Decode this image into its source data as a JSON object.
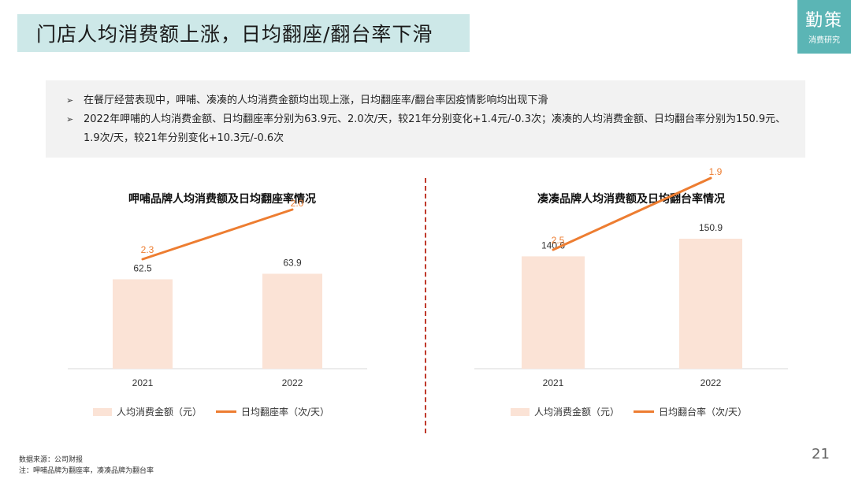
{
  "header": {
    "title": "门店人均消费额上涨，日均翻座/翻台率下滑",
    "logo_main": "勤策",
    "logo_sub": "消费研究"
  },
  "summary": {
    "bullets": [
      "在餐厅经营表现中，呷哺、凑凑的人均消费金额均出现上涨，日均翻座率/翻台率因疫情影响均出现下滑",
      "2022年呷哺的人均消费金额、日均翻座率分别为63.9元、2.0次/天，较21年分别变化+1.4元/-0.3次；凑凑的人均消费金额、日均翻台率分别为150.9元、1.9次/天，较21年分别变化+10.3元/-0.6次"
    ],
    "bullet_mark": "➢"
  },
  "legend": {
    "bar_label": "人均消费金额（元）",
    "line_left_label": "日均翻座率（次/天）",
    "line_right_label": "日均翻台率（次/天）"
  },
  "footer": {
    "source": "数据来源：公司财报",
    "note": "注：呷哺品牌为翻座率，凑凑品牌为翻台率",
    "page": "21"
  },
  "colors": {
    "bar": "#fbe3d6",
    "line": "#ed7d31",
    "axis": "#d9d9d9",
    "divider": "#c0392b",
    "title_bg": "#cde8e8",
    "logo_bg": "#5bb5b5"
  },
  "chart_data": [
    {
      "type": "bar",
      "title": "呷哺品牌人均消费额及日均翻座率情况",
      "categories": [
        "2021",
        "2022"
      ],
      "series": [
        {
          "name": "人均消费金额（元）",
          "type": "bar",
          "values": [
            62.5,
            63.9
          ]
        },
        {
          "name": "日均翻座率（次/天）",
          "type": "line",
          "values": [
            2.3,
            2.0
          ]
        }
      ],
      "legend": "bottom"
    },
    {
      "type": "bar",
      "title": "凑凑品牌人均消费额及日均翻台率情况",
      "categories": [
        "2021",
        "2022"
      ],
      "series": [
        {
          "name": "人均消费金额（元）",
          "type": "bar",
          "values": [
            140.6,
            150.9
          ]
        },
        {
          "name": "日均翻台率（次/天）",
          "type": "line",
          "values": [
            2.5,
            1.9
          ]
        }
      ],
      "legend": "bottom"
    }
  ]
}
